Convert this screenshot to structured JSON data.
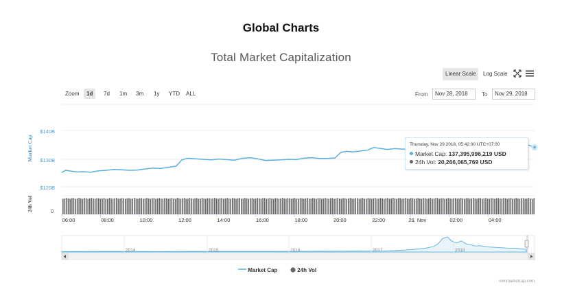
{
  "page": {
    "heading": "Global Charts",
    "credits": "coinmarketcap.com"
  },
  "controls": {
    "scale_linear": "Linear Scale",
    "scale_log": "Log Scale",
    "zoom_label": "Zoom",
    "zoom_options": [
      "1d",
      "7d",
      "1m",
      "3m",
      "1y",
      "YTD",
      "ALL"
    ],
    "zoom_selected": "1d",
    "from_label": "From",
    "from_value": "Nov 28, 2018",
    "to_label": "To",
    "to_value": "Nov 29, 2018"
  },
  "tooltip": {
    "date": "Thursday, Nov 29 2018, 05:42:00 UTC+07:00",
    "market_cap_label": "Market Cap:",
    "market_cap_value": "137,395,996,219 USD",
    "volume_label": "24h Vol:",
    "volume_value": "20,266,065,769 USD"
  },
  "colors": {
    "market_cap": "#5aafdb",
    "volume": "#666666",
    "grid": "#e6e6e6",
    "axis_label": "#4a9fd8"
  },
  "chart_data": {
    "type": "line",
    "title": "Total Market Capitalization",
    "y_axis_label": "Market Cap",
    "y_axis_ticks": [
      "$120B",
      "$130B",
      "$140B"
    ],
    "y_range_billions": [
      120,
      145
    ],
    "volume_axis_label": "24h Vol",
    "volume_axis_ticks": [
      "0"
    ],
    "x_tick_labels": [
      "06:00",
      "08:00",
      "10:00",
      "12:00",
      "14:00",
      "16:00",
      "18:00",
      "20:00",
      "22:00",
      "29. Nov",
      "02:00",
      "04:00"
    ],
    "x_tick_hours": [
      0,
      2,
      4,
      6,
      8,
      10,
      12,
      14,
      16,
      18,
      20,
      22
    ],
    "x_range_hours": [
      0,
      24.4
    ],
    "series": [
      {
        "name": "Market Cap",
        "unit": "billion USD",
        "points": [
          [
            0,
            125.2
          ],
          [
            0.2,
            126.0
          ],
          [
            0.5,
            125.7
          ],
          [
            0.8,
            125.4
          ],
          [
            1.1,
            125.5
          ],
          [
            1.5,
            125.3
          ],
          [
            1.9,
            125.8
          ],
          [
            2.3,
            126.0
          ],
          [
            2.7,
            126.3
          ],
          [
            3.1,
            126.2
          ],
          [
            3.5,
            126.0
          ],
          [
            3.9,
            126.1
          ],
          [
            4.3,
            126.5
          ],
          [
            4.7,
            126.8
          ],
          [
            5.1,
            126.7
          ],
          [
            5.5,
            127.1
          ],
          [
            5.9,
            127.5
          ],
          [
            6.2,
            129.8
          ],
          [
            6.5,
            130.4
          ],
          [
            6.9,
            130.2
          ],
          [
            7.3,
            130.0
          ],
          [
            7.7,
            129.8
          ],
          [
            8.1,
            130.1
          ],
          [
            8.5,
            129.9
          ],
          [
            8.9,
            129.7
          ],
          [
            9.3,
            130.3
          ],
          [
            9.7,
            130.6
          ],
          [
            10.1,
            130.2
          ],
          [
            10.5,
            129.6
          ],
          [
            10.9,
            129.7
          ],
          [
            11.3,
            129.8
          ],
          [
            11.7,
            130.0
          ],
          [
            12.1,
            129.9
          ],
          [
            12.5,
            130.4
          ],
          [
            12.9,
            130.6
          ],
          [
            13.3,
            130.3
          ],
          [
            13.7,
            130.3
          ],
          [
            14.1,
            130.5
          ],
          [
            14.4,
            132.5
          ],
          [
            14.7,
            132.9
          ],
          [
            15.0,
            132.7
          ],
          [
            15.4,
            133.0
          ],
          [
            15.8,
            133.4
          ],
          [
            16.1,
            134.3
          ],
          [
            16.4,
            134.0
          ],
          [
            16.8,
            133.6
          ],
          [
            17.2,
            133.9
          ],
          [
            17.6,
            133.7
          ],
          [
            18.0,
            133.9
          ],
          [
            18.4,
            133.5
          ],
          [
            18.8,
            134.1
          ],
          [
            19.2,
            133.9
          ],
          [
            19.6,
            134.2
          ],
          [
            20.0,
            134.5
          ],
          [
            20.3,
            136.3
          ],
          [
            20.6,
            136.4
          ],
          [
            20.9,
            136.0
          ],
          [
            21.2,
            136.5
          ],
          [
            21.5,
            136.2
          ],
          [
            21.8,
            136.8
          ],
          [
            22.1,
            137.3
          ],
          [
            22.4,
            136.9
          ],
          [
            22.7,
            137.0
          ],
          [
            23.1,
            136.6
          ],
          [
            23.4,
            136.2
          ],
          [
            23.7,
            135.7
          ],
          [
            24.0,
            135.3
          ],
          [
            24.2,
            134.9
          ],
          [
            24.4,
            134.4
          ]
        ]
      },
      {
        "name": "24h Vol",
        "unit": "relative",
        "bar_level": 0.88
      }
    ]
  },
  "navigator": {
    "year_labels": [
      "2014",
      "2015",
      "2016",
      "2017",
      "2018"
    ],
    "history_points": [
      [
        0.0,
        0.03
      ],
      [
        0.1,
        0.04
      ],
      [
        0.2,
        0.03
      ],
      [
        0.3,
        0.04
      ],
      [
        0.4,
        0.04
      ],
      [
        0.5,
        0.05
      ],
      [
        0.6,
        0.06
      ],
      [
        0.7,
        0.08
      ],
      [
        0.72,
        0.1
      ],
      [
        0.74,
        0.13
      ],
      [
        0.76,
        0.18
      ],
      [
        0.78,
        0.24
      ],
      [
        0.8,
        0.36
      ],
      [
        0.81,
        0.55
      ],
      [
        0.82,
        0.9
      ],
      [
        0.83,
        1.0
      ],
      [
        0.84,
        0.72
      ],
      [
        0.85,
        0.6
      ],
      [
        0.86,
        0.74
      ],
      [
        0.87,
        0.55
      ],
      [
        0.88,
        0.48
      ],
      [
        0.89,
        0.4
      ],
      [
        0.9,
        0.42
      ],
      [
        0.92,
        0.33
      ],
      [
        0.94,
        0.3
      ],
      [
        0.96,
        0.26
      ],
      [
        0.98,
        0.24
      ],
      [
        1.0,
        0.18
      ]
    ]
  },
  "legend": {
    "market_cap": "Market Cap",
    "volume": "24h Vol"
  }
}
